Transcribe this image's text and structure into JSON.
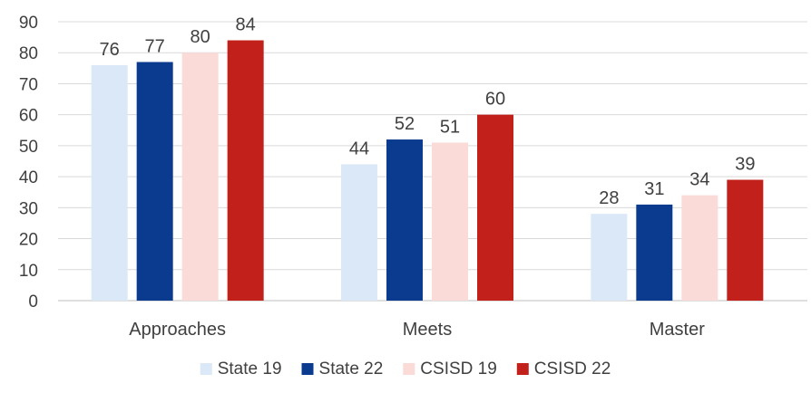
{
  "chart_data": {
    "type": "bar",
    "categories": [
      "Approaches",
      "Meets",
      "Master"
    ],
    "series": [
      {
        "name": "State 19",
        "values": [
          76,
          44,
          28
        ],
        "color": "#dae8f8"
      },
      {
        "name": "State 22",
        "values": [
          77,
          52,
          31
        ],
        "color": "#0b3b8f"
      },
      {
        "name": "CSISD 19",
        "values": [
          80,
          51,
          34
        ],
        "color": "#fadbd8"
      },
      {
        "name": "CSISD 22",
        "values": [
          84,
          60,
          39
        ],
        "color": "#c2201b"
      }
    ],
    "ylim": [
      0,
      90
    ],
    "yticks": [
      0,
      10,
      20,
      30,
      40,
      50,
      60,
      70,
      80,
      90
    ],
    "grid": true,
    "legend_position": "bottom",
    "data_labels": true
  }
}
